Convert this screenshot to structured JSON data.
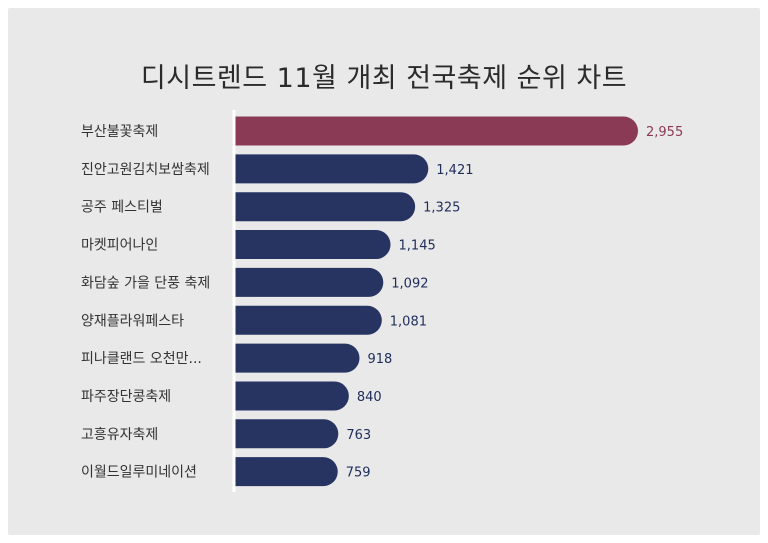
{
  "chart_data": {
    "type": "bar",
    "orientation": "horizontal",
    "title": "디시트렌드 11월 개최 전국축제 순위 차트",
    "categories": [
      "부산불꽃축제",
      "진안고원김치보쌈축제",
      "공주 페스티벌",
      "마켓피어나인",
      "화담숲 가을 단풍 축제",
      "양재플라워페스타",
      "피나클랜드 오천만...",
      "파주장단콩축제",
      "고흥유자축제",
      "이월드일루미네이션"
    ],
    "values": [
      2955,
      1421,
      1325,
      1145,
      1092,
      1081,
      918,
      840,
      763,
      759
    ],
    "value_labels": [
      "2,955",
      "1,421",
      "1,325",
      "1,145",
      "1,092",
      "1,081",
      "918",
      "840",
      "763",
      "759"
    ],
    "xlim": [
      0,
      2955
    ],
    "grid": false,
    "legend": "none",
    "colors": {
      "highlight": "#8a3a55",
      "bar": "#273462",
      "axis": "#ffffff",
      "background": "#e9e9e9"
    }
  }
}
